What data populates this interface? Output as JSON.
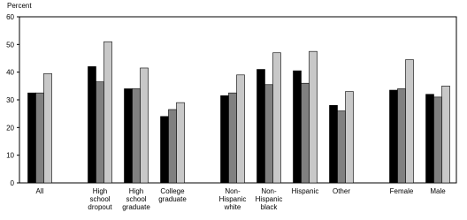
{
  "chart_data": {
    "type": "bar",
    "y_label": "Percent",
    "categories": [
      "All",
      null,
      "High\nschool\ndropout",
      "High\nschool\ngraduate",
      "College\ngraduate",
      null,
      "Non-\nHispanic\nwhite",
      "Non-\nHispanic\nblack",
      "Hispanic",
      "Other",
      null,
      "Female",
      "Male"
    ],
    "series": [
      {
        "color": "#000000",
        "values": [
          32.5,
          null,
          42,
          34,
          24,
          null,
          31.5,
          41,
          40.5,
          28,
          null,
          33.5,
          32
        ]
      },
      {
        "color": "#808080",
        "values": [
          32.5,
          null,
          36.5,
          34,
          26.5,
          null,
          32.5,
          35.5,
          36,
          26,
          null,
          34,
          31
        ]
      },
      {
        "color": "#c8c8c8",
        "values": [
          39.5,
          null,
          51,
          41.5,
          29,
          null,
          39,
          47,
          47.5,
          33,
          null,
          44.5,
          35
        ]
      }
    ],
    "ylim": [
      0,
      60
    ],
    "yticks": [
      0,
      10,
      20,
      30,
      40,
      50,
      60
    ]
  }
}
